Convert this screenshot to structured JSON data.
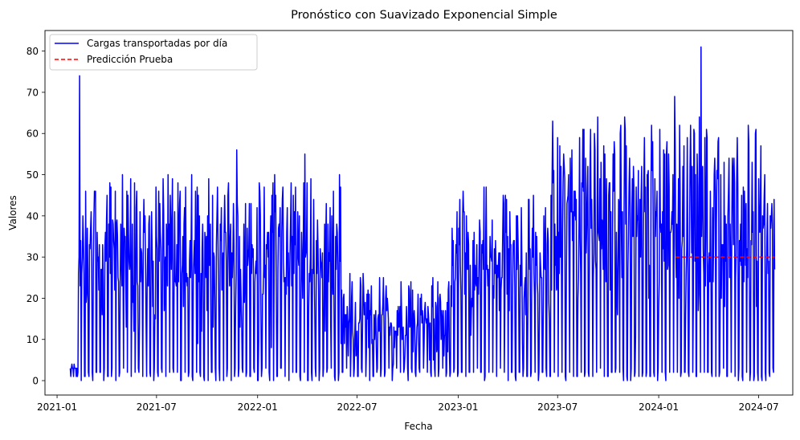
{
  "chart_data": {
    "type": "line",
    "title": "Pronóstico con Suavizado Exponencial Simple",
    "xlabel": "Fecha",
    "ylabel": "Valores",
    "x_ticks": [
      "2021-01",
      "2021-07",
      "2022-01",
      "2022-07",
      "2023-01",
      "2023-07",
      "2024-01",
      "2024-07"
    ],
    "y_ticks": [
      0,
      10,
      20,
      30,
      40,
      50,
      60,
      70,
      80
    ],
    "xlim": [
      "2020-12-10",
      "2024-09-01"
    ],
    "ylim": [
      -3.5,
      85
    ],
    "legend_position": "top-left",
    "grid": false,
    "series": [
      {
        "name": "Cargas transportadas por día",
        "color": "#0000ff",
        "style": "solid",
        "start_date": "2021-01-25",
        "end_date": "2024-07-30",
        "regimes": [
          {
            "from": "2021-01-25",
            "to": "2021-02-08",
            "low": 0,
            "high": 4
          },
          {
            "from": "2021-02-08",
            "to": "2022-06-01",
            "low": 0,
            "high": 50,
            "center": 31
          },
          {
            "from": "2022-06-01",
            "to": "2022-12-20",
            "low": 0,
            "high": 26,
            "center": 15
          },
          {
            "from": "2022-12-20",
            "to": "2023-06-20",
            "low": 0,
            "high": 47,
            "center": 28
          },
          {
            "from": "2023-06-20",
            "to": "2024-07-30",
            "low": 0,
            "high": 64,
            "center": 40
          }
        ],
        "peaks": [
          {
            "date": "2021-02-11",
            "value": 74
          },
          {
            "date": "2021-11-24",
            "value": 56
          },
          {
            "date": "2022-03-28",
            "value": 55
          },
          {
            "date": "2023-09-12",
            "value": 64
          },
          {
            "date": "2024-01-30",
            "value": 69
          },
          {
            "date": "2024-03-18",
            "value": 81
          }
        ]
      },
      {
        "name": "Predicción Prueba",
        "color": "#ff0000",
        "style": "dashed",
        "x": [
          "2024-02-01",
          "2024-07-30"
        ],
        "values": [
          30,
          30
        ]
      }
    ]
  }
}
